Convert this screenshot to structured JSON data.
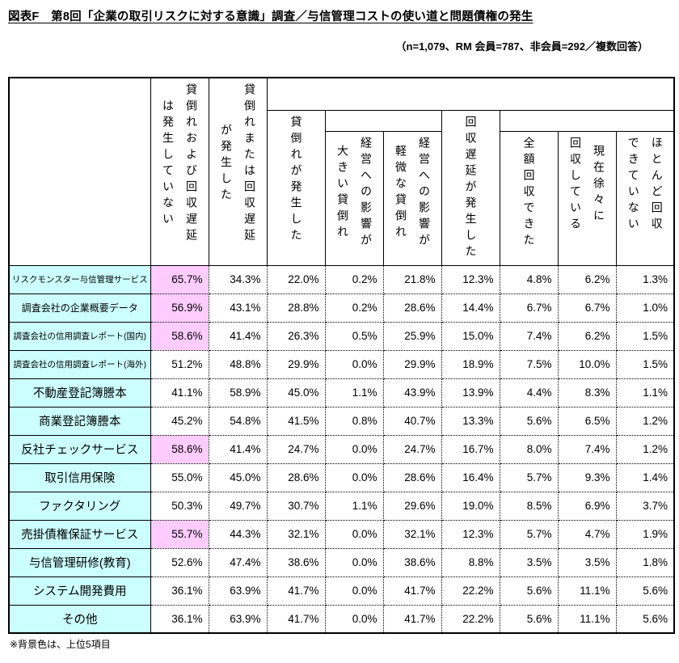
{
  "chart_data": {
    "type": "table",
    "title": "図表F　第8回「企業の取引リスクに対する意識」調査／与信管理コストの使い道と問題債権の発生",
    "subtitle": "（n=1,079、RM 会員=787、非会員=292／複数回答）",
    "note": "※背景色は、上位5項目",
    "unit": "%",
    "columns": [
      "貸倒れおよび回収遅延\nは発生していない",
      "貸倒れまたは回収遅延\nが発生した",
      "貸倒れが発生した",
      "経営への影響が\n大きい貸倒れ",
      "経営への影響が\n軽微な貸倒れ",
      "回収遅延が発生した",
      "全額回収できた",
      "現在徐々に\n回収している",
      "ほとんど回収\nできていない"
    ],
    "rows": [
      {
        "label": "リスクモンスター与信管理サービス",
        "highlight": true,
        "values": [
          65.7,
          34.3,
          22.0,
          0.2,
          21.8,
          12.3,
          4.8,
          6.2,
          1.3
        ]
      },
      {
        "label": "調査会社の企業概要データ",
        "highlight": true,
        "values": [
          56.9,
          43.1,
          28.8,
          0.2,
          28.6,
          14.4,
          6.7,
          6.7,
          1.0
        ]
      },
      {
        "label": "調査会社の信用調査レポート(国内)",
        "highlight": true,
        "values": [
          58.6,
          41.4,
          26.3,
          0.5,
          25.9,
          15.0,
          7.4,
          6.2,
          1.5
        ]
      },
      {
        "label": "調査会社の信用調査レポート(海外)",
        "highlight": false,
        "values": [
          51.2,
          48.8,
          29.9,
          0.0,
          29.9,
          18.9,
          7.5,
          10.0,
          1.5
        ]
      },
      {
        "label": "不動産登記簿謄本",
        "highlight": false,
        "values": [
          41.1,
          58.9,
          45.0,
          1.1,
          43.9,
          13.9,
          4.4,
          8.3,
          1.1
        ]
      },
      {
        "label": "商業登記簿謄本",
        "highlight": false,
        "values": [
          45.2,
          54.8,
          41.5,
          0.8,
          40.7,
          13.3,
          5.6,
          6.5,
          1.2
        ]
      },
      {
        "label": "反社チェックサービス",
        "highlight": true,
        "values": [
          58.6,
          41.4,
          24.7,
          0.0,
          24.7,
          16.7,
          8.0,
          7.4,
          1.2
        ]
      },
      {
        "label": "取引信用保険",
        "highlight": false,
        "values": [
          55.0,
          45.0,
          28.6,
          0.0,
          28.6,
          16.4,
          5.7,
          9.3,
          1.4
        ]
      },
      {
        "label": "ファクタリング",
        "highlight": false,
        "values": [
          50.3,
          49.7,
          30.7,
          1.1,
          29.6,
          19.0,
          8.5,
          6.9,
          3.7
        ]
      },
      {
        "label": "売掛債権保証サービス",
        "highlight": true,
        "values": [
          55.7,
          44.3,
          32.1,
          0.0,
          32.1,
          12.3,
          5.7,
          4.7,
          1.9
        ]
      },
      {
        "label": "与信管理研修(教育)",
        "highlight": false,
        "values": [
          52.6,
          47.4,
          38.6,
          0.0,
          38.6,
          8.8,
          3.5,
          3.5,
          1.8
        ]
      },
      {
        "label": "システム開発費用",
        "highlight": false,
        "values": [
          36.1,
          63.9,
          41.7,
          0.0,
          41.7,
          22.2,
          5.6,
          11.1,
          5.6
        ]
      },
      {
        "label": "その他",
        "highlight": false,
        "values": [
          36.1,
          63.9,
          41.7,
          0.0,
          41.7,
          22.2,
          5.6,
          11.1,
          5.6
        ]
      }
    ]
  },
  "colors": {
    "row_label_bg": "#ccffff",
    "highlight_bg": "#ffccff",
    "border": "#000000"
  }
}
